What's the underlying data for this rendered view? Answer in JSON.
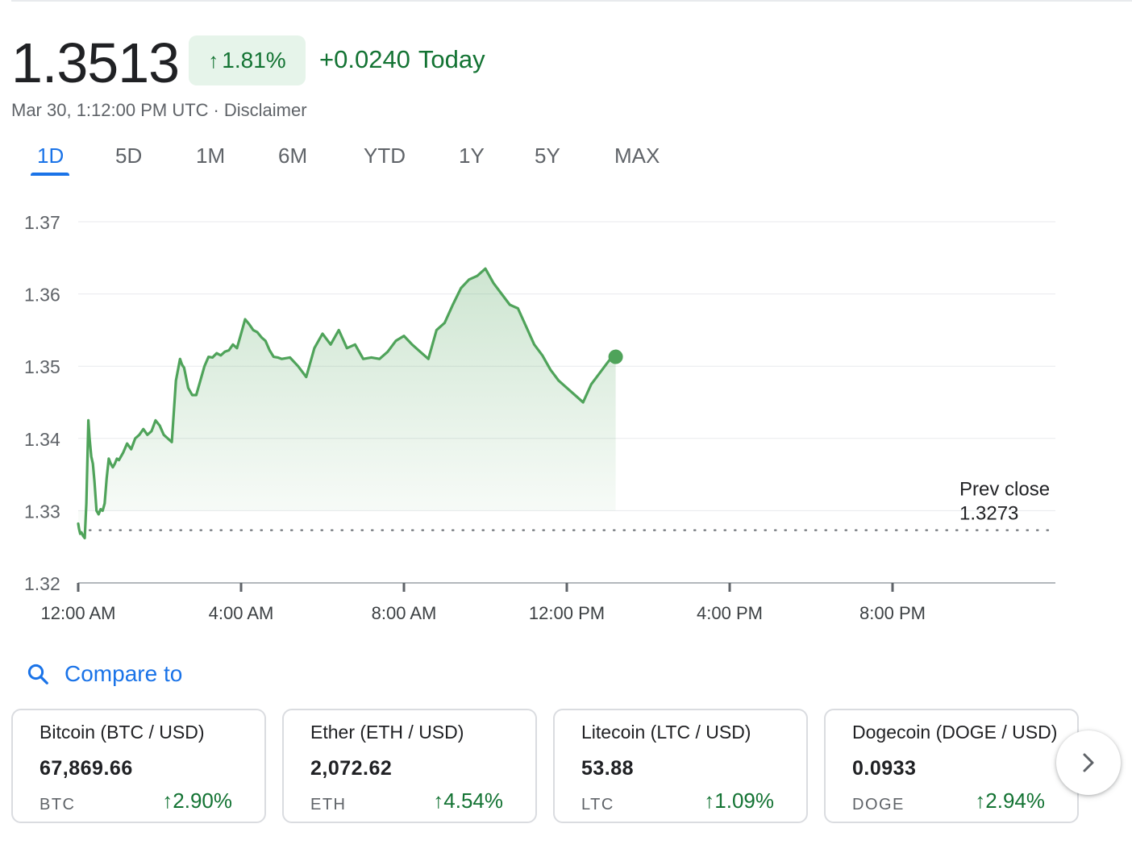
{
  "quote": {
    "price": "1.3513",
    "change_pct": "1.81%",
    "change_abs": "+0.0240",
    "change_label": "Today",
    "timestamp": "Mar 30, 1:12:00 PM UTC",
    "disclaimer": "Disclaimer",
    "up_color": "#137333",
    "up_bg": "#e6f4ea"
  },
  "tabs": [
    {
      "label": "1D",
      "active": true
    },
    {
      "label": "5D",
      "active": false
    },
    {
      "label": "1M",
      "active": false
    },
    {
      "label": "6M",
      "active": false
    },
    {
      "label": "YTD",
      "active": false
    },
    {
      "label": "1Y",
      "active": false
    },
    {
      "label": "5Y",
      "active": false
    },
    {
      "label": "MAX",
      "active": false
    }
  ],
  "chart_data": {
    "type": "area",
    "y_ticks": [
      "1.37",
      "1.36",
      "1.35",
      "1.34",
      "1.33",
      "1.32"
    ],
    "ylim": [
      1.32,
      1.37
    ],
    "x_ticks": [
      "12:00 AM",
      "4:00 AM",
      "8:00 AM",
      "12:00 PM",
      "4:00 PM",
      "8:00 PM"
    ],
    "x_tick_hours": [
      0,
      4,
      8,
      12,
      16,
      20
    ],
    "xlim_hours": [
      0,
      24
    ],
    "grid": true,
    "line_color": "#4fa35a",
    "prev_close": {
      "label": "Prev close",
      "value": "1.3273",
      "y": 1.3273
    },
    "series": [
      {
        "x": [
          0.0,
          0.02,
          0.05,
          0.08,
          0.12,
          0.16,
          0.2,
          0.25,
          0.28,
          0.32,
          0.36,
          0.4,
          0.45,
          0.5,
          0.55,
          0.6,
          0.65,
          0.7,
          0.75,
          0.8,
          0.85,
          0.9,
          0.95,
          1.0,
          1.1,
          1.2,
          1.3,
          1.4,
          1.5,
          1.6,
          1.7,
          1.8,
          1.9,
          2.0,
          2.1,
          2.2,
          2.3,
          2.4,
          2.5,
          2.55,
          2.6,
          2.7,
          2.8,
          2.9,
          3.0,
          3.1,
          3.2,
          3.3,
          3.4,
          3.5,
          3.6,
          3.7,
          3.8,
          3.9,
          4.0,
          4.1,
          4.2,
          4.3,
          4.4,
          4.5,
          4.6,
          4.7,
          4.8,
          4.9,
          5.0,
          5.2,
          5.4,
          5.6,
          5.8,
          6.0,
          6.2,
          6.4,
          6.6,
          6.8,
          7.0,
          7.2,
          7.4,
          7.6,
          7.8,
          8.0,
          8.2,
          8.4,
          8.6,
          8.8,
          9.0,
          9.2,
          9.4,
          9.6,
          9.8,
          10.0,
          10.2,
          10.4,
          10.6,
          10.8,
          11.0,
          11.2,
          11.4,
          11.6,
          11.8,
          12.0,
          12.2,
          12.4,
          12.6,
          12.8,
          13.0,
          13.1,
          13.2
        ],
        "y": [
          1.3282,
          1.3275,
          1.3268,
          1.327,
          1.3265,
          1.3262,
          1.331,
          1.3425,
          1.34,
          1.3375,
          1.3365,
          1.334,
          1.33,
          1.3295,
          1.3302,
          1.33,
          1.331,
          1.3345,
          1.3372,
          1.3365,
          1.336,
          1.3365,
          1.3372,
          1.337,
          1.338,
          1.3393,
          1.3385,
          1.34,
          1.3405,
          1.3413,
          1.3405,
          1.341,
          1.3425,
          1.3418,
          1.3405,
          1.34,
          1.3395,
          1.348,
          1.351,
          1.3502,
          1.3498,
          1.347,
          1.346,
          1.346,
          1.348,
          1.35,
          1.3513,
          1.3512,
          1.3518,
          1.3515,
          1.352,
          1.3522,
          1.353,
          1.3525,
          1.3545,
          1.3565,
          1.3558,
          1.355,
          1.3547,
          1.354,
          1.3535,
          1.3522,
          1.3513,
          1.3512,
          1.351,
          1.3512,
          1.35,
          1.3485,
          1.3525,
          1.3545,
          1.353,
          1.355,
          1.3525,
          1.353,
          1.351,
          1.3512,
          1.351,
          1.352,
          1.3535,
          1.3542,
          1.353,
          1.352,
          1.351,
          1.355,
          1.356,
          1.3585,
          1.3608,
          1.362,
          1.3625,
          1.3635,
          1.3615,
          1.36,
          1.3585,
          1.358,
          1.3555,
          1.353,
          1.3515,
          1.3495,
          1.348,
          1.347,
          1.346,
          1.345,
          1.3475,
          1.349,
          1.3505,
          1.3512,
          1.3513
        ]
      }
    ]
  },
  "compare": {
    "label": "Compare to",
    "icon": "search-icon"
  },
  "cards": [
    {
      "name": "Bitcoin (BTC / USD)",
      "value": "67,869.66",
      "symbol": "BTC",
      "change": "2.90%"
    },
    {
      "name": "Ether (ETH / USD)",
      "value": "2,072.62",
      "symbol": "ETH",
      "change": "4.54%"
    },
    {
      "name": "Litecoin (LTC / USD)",
      "value": "53.88",
      "symbol": "LTC",
      "change": "1.09%"
    },
    {
      "name": "Dogecoin (DOGE / USD)",
      "value": "0.0933",
      "symbol": "DOGE",
      "change": "2.94%"
    }
  ],
  "next_button": {
    "icon": "chevron-right-icon"
  }
}
